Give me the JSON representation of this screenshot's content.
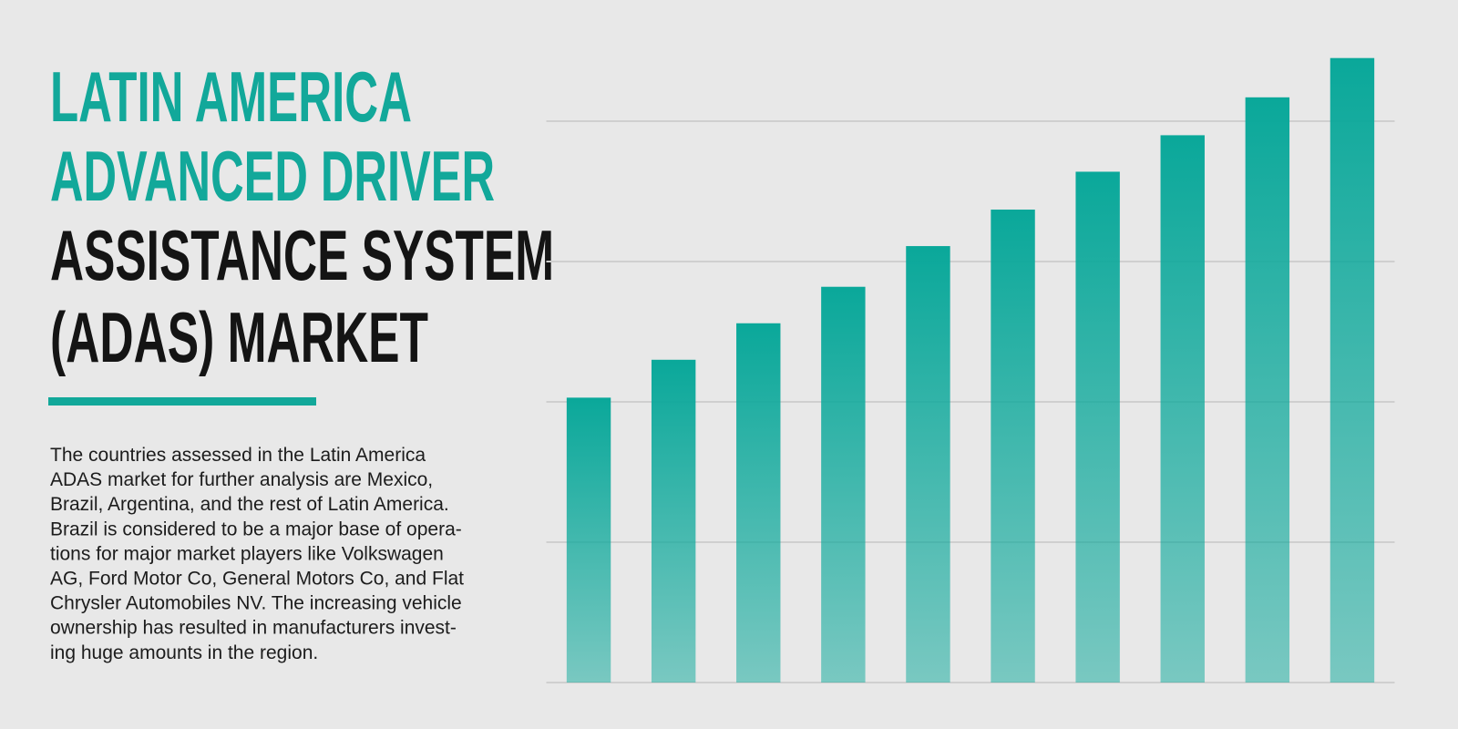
{
  "title": [
    "LATIN AMERICA",
    "ADVANCED DRIVER",
    "ASSISTANCE SYSTEM",
    "(ADAS) MARKET"
  ],
  "description": [
    "The countries assessed in the Latin America",
    "ADAS market for further analysis are Mexico,",
    "Brazil, Argentina, and the rest of Latin America.",
    "Brazil is considered to be a major base of opera-",
    "tions for major market players like Volkswagen",
    "AG, Ford Motor Co, General Motors Co, and Flat",
    "Chrysler Automobiles NV. The increasing vehicle",
    "ownership has resulted in manufacturers invest-",
    "ing huge amounts in the region."
  ],
  "chart_data": {
    "type": "bar",
    "categories": [
      null,
      null,
      null,
      null,
      null,
      null,
      null,
      null,
      null,
      null
    ],
    "values": [
      2.03,
      2.3,
      2.56,
      2.82,
      3.11,
      3.37,
      3.64,
      3.9,
      4.17,
      4.45
    ],
    "color": "#0aa89a",
    "ylim": [
      0,
      4.5
    ],
    "yticks": [
      0,
      1,
      2,
      3,
      4
    ],
    "grid": true
  }
}
